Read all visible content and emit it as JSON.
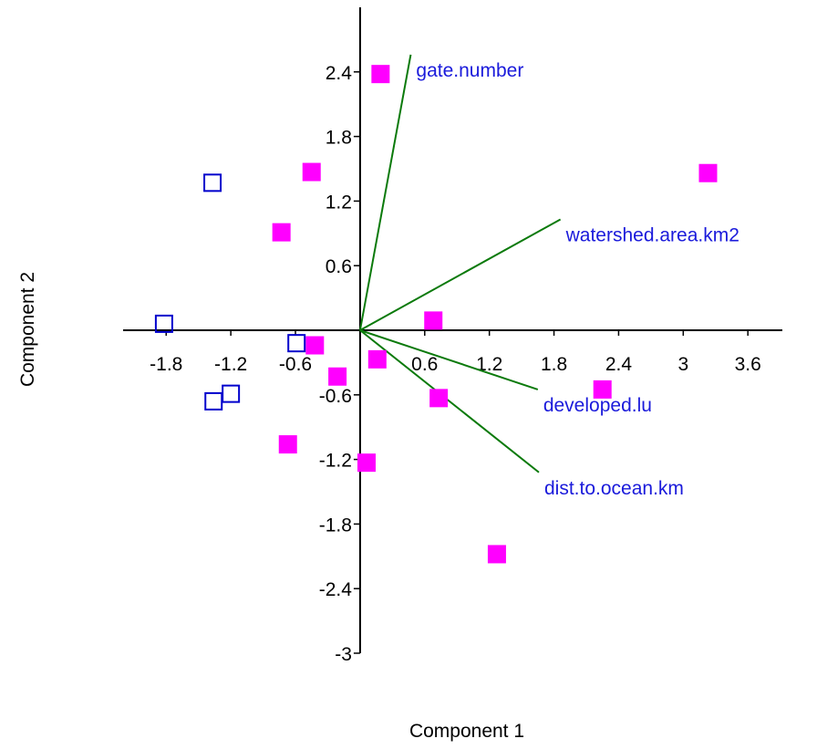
{
  "chart_data": {
    "type": "biplot",
    "x_label": "Component 1",
    "y_label": "Component 2",
    "xlim": [
      -2.2,
      3.92
    ],
    "ylim": [
      -3,
      3
    ],
    "xticks": [
      -1.8,
      -1.2,
      -0.6,
      0.6,
      1.2,
      1.8,
      2.4,
      3,
      3.6
    ],
    "yticks": [
      2.4,
      1.8,
      1.2,
      0.6,
      -0.6,
      -1.2,
      -1.8,
      -2.4,
      -3
    ],
    "series": [
      {
        "color": "#ff00ff",
        "marker": "square-filled",
        "x": [
          0.19,
          -0.45,
          3.23,
          -0.73,
          0.68,
          -0.42,
          0.16,
          -0.21,
          0.73,
          2.25,
          -0.67,
          0.06,
          1.27
        ],
        "values": [
          2.38,
          1.47,
          1.46,
          0.91,
          0.09,
          -0.14,
          -0.27,
          -0.43,
          -0.63,
          -0.55,
          -1.06,
          -1.23,
          -2.08
        ]
      },
      {
        "color": "#0000cc",
        "marker": "square-open",
        "x": [
          -1.37,
          -1.82,
          -0.59,
          -1.2,
          -1.36
        ],
        "values": [
          1.37,
          0.06,
          -0.12,
          -0.59,
          -0.66
        ]
      }
    ],
    "vector_color": "#0b7a0b",
    "vector_label_color": "#1a1adb",
    "vectors": [
      {
        "label": "gate.number",
        "x": 0.47,
        "y": 2.56
      },
      {
        "label": "watershed.area.km2",
        "x": 1.86,
        "y": 1.03
      },
      {
        "label": "developed.lu",
        "x": 1.65,
        "y": -0.55
      },
      {
        "label": "dist.to.ocean.km",
        "x": 1.66,
        "y": -1.32
      }
    ]
  }
}
